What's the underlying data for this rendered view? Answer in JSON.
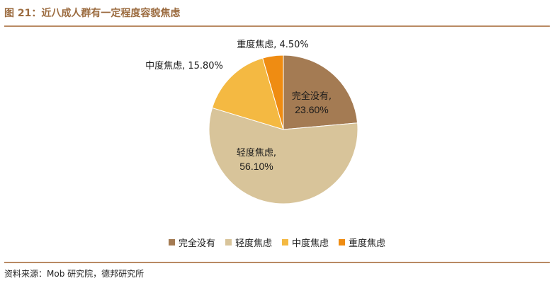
{
  "figure": {
    "title": "图 21：近八成人群有一定程度容貌焦虑",
    "source": "资料来源：Mob 研究院，德邦研究所"
  },
  "colors": {
    "accent": "#9b6b3f",
    "rule": "#b98a63"
  },
  "chart_data": {
    "type": "pie",
    "title": "",
    "unit": "%",
    "slices": [
      {
        "label": "完全没有",
        "value": 23.6,
        "value_label": "23.60%",
        "color": "#a47b53",
        "label_text_color": "#1a1a1a"
      },
      {
        "label": "轻度焦虑",
        "value": 56.1,
        "value_label": "56.10%",
        "color": "#d8c49a",
        "label_text_color": "#1a1a1a"
      },
      {
        "label": "中度焦虑",
        "value": 15.8,
        "value_label": "15.80%",
        "color": "#f4b942",
        "label_text_color": "#1a1a1a"
      },
      {
        "label": "重度焦虑",
        "value": 4.5,
        "value_label": "4.50%",
        "color": "#ef8c12",
        "label_text_color": "#1a1a1a"
      }
    ],
    "start_angle_deg": 0,
    "direction": "clockwise",
    "legend": {
      "position": "bottom",
      "items": [
        "完全没有",
        "轻度焦虑",
        "中度焦虑",
        "重度焦虑"
      ]
    }
  }
}
